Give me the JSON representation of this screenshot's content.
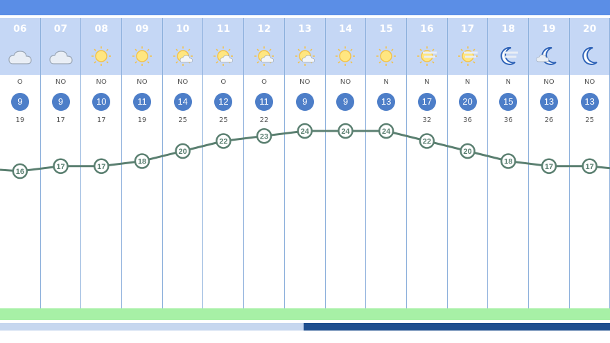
{
  "hours": [
    {
      "hour": "06",
      "icon": "cloud-icon",
      "dir": "O",
      "wind": "9",
      "gust": "19",
      "temp": "16"
    },
    {
      "hour": "07",
      "icon": "cloud-icon",
      "dir": "NO",
      "wind": "9",
      "gust": "17",
      "temp": "17"
    },
    {
      "hour": "08",
      "icon": "sun-icon",
      "dir": "NO",
      "wind": "10",
      "gust": "17",
      "temp": "17"
    },
    {
      "hour": "09",
      "icon": "sun-icon",
      "dir": "NO",
      "wind": "11",
      "gust": "19",
      "temp": "18"
    },
    {
      "hour": "10",
      "icon": "sun-cloud-icon",
      "dir": "NO",
      "wind": "14",
      "gust": "25",
      "temp": "20"
    },
    {
      "hour": "11",
      "icon": "sun-cloud-icon",
      "dir": "O",
      "wind": "12",
      "gust": "25",
      "temp": "22"
    },
    {
      "hour": "12",
      "icon": "sun-cloud-icon",
      "dir": "O",
      "wind": "11",
      "gust": "22",
      "temp": "23"
    },
    {
      "hour": "13",
      "icon": "sun-cloud-icon",
      "dir": "NO",
      "wind": "9",
      "gust": "",
      "temp": "24"
    },
    {
      "hour": "14",
      "icon": "sun-icon",
      "dir": "NO",
      "wind": "9",
      "gust": "",
      "temp": "24"
    },
    {
      "hour": "15",
      "icon": "sun-icon",
      "dir": "N",
      "wind": "13",
      "gust": "",
      "temp": "24"
    },
    {
      "hour": "16",
      "icon": "sun-haze-icon",
      "dir": "N",
      "wind": "17",
      "gust": "32",
      "temp": "22"
    },
    {
      "hour": "17",
      "icon": "sun-haze-icon",
      "dir": "N",
      "wind": "20",
      "gust": "36",
      "temp": "20"
    },
    {
      "hour": "18",
      "icon": "moon-haze-icon",
      "dir": "N",
      "wind": "15",
      "gust": "36",
      "temp": "18"
    },
    {
      "hour": "19",
      "icon": "moon-cloud-icon",
      "dir": "NO",
      "wind": "13",
      "gust": "26",
      "temp": "17"
    },
    {
      "hour": "20",
      "icon": "moon-icon",
      "dir": "NO",
      "wind": "13",
      "gust": "25",
      "temp": "17"
    }
  ],
  "colors": {
    "header_bar": "#5b8ee6",
    "header_strip": "#c5d7f5",
    "wind_badge": "#4d7ec8",
    "temp_line": "#5a7f70",
    "bottom_green": "#a7f0a6",
    "scroll_thumb": "#1f4f8f"
  }
}
